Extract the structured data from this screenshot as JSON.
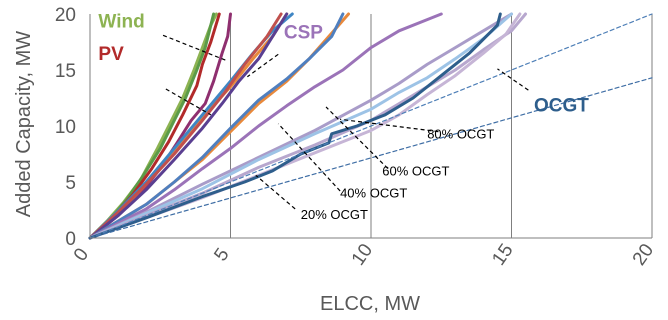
{
  "chart_data": {
    "type": "line",
    "xlabel": "ELCC, MW",
    "ylabel": "Added Capacity, MW",
    "xlim": [
      0,
      20
    ],
    "ylim": [
      0,
      20
    ],
    "xticks": [
      "0",
      "5",
      "10",
      "15",
      "20"
    ],
    "yticks": [
      "0",
      "5",
      "10",
      "15",
      "20"
    ],
    "grid": "vertical",
    "series": [
      {
        "name": "Wind",
        "color": "#8db352",
        "points": [
          [
            0,
            0
          ],
          [
            0.6,
            1.5
          ],
          [
            1.2,
            3.2
          ],
          [
            1.8,
            5.2
          ],
          [
            2.4,
            8
          ],
          [
            2.8,
            10
          ],
          [
            3.3,
            12.5
          ],
          [
            3.7,
            15
          ],
          [
            4,
            17
          ],
          [
            4.3,
            19
          ],
          [
            4.5,
            20
          ]
        ]
      },
      {
        "name": "",
        "color": "#5b9b48",
        "points": [
          [
            0,
            0
          ],
          [
            0.7,
            1.6
          ],
          [
            1.3,
            3.4
          ],
          [
            1.9,
            5.6
          ],
          [
            2.5,
            8
          ],
          [
            2.9,
            10
          ],
          [
            3.4,
            12.5
          ],
          [
            3.8,
            15
          ],
          [
            4.1,
            17
          ],
          [
            4.4,
            20
          ]
        ]
      },
      {
        "name": "PV",
        "color": "#b22a2a",
        "points": [
          [
            0,
            0
          ],
          [
            0.8,
            1.8
          ],
          [
            1.5,
            3.8
          ],
          [
            2.2,
            6.2
          ],
          [
            2.8,
            8.6
          ],
          [
            3.3,
            11
          ],
          [
            3.8,
            13.6
          ],
          [
            4,
            15.5
          ],
          [
            4.3,
            17.5
          ],
          [
            4.6,
            20
          ]
        ]
      },
      {
        "name": "",
        "color": "#8f2f6f",
        "points": [
          [
            0,
            0
          ],
          [
            1,
            2
          ],
          [
            1.8,
            4
          ],
          [
            2.5,
            6.2
          ],
          [
            3.1,
            8.5
          ],
          [
            3.6,
            10.5
          ],
          [
            4.1,
            12
          ],
          [
            4.4,
            14
          ],
          [
            4.7,
            16.5
          ],
          [
            4.9,
            18
          ],
          [
            5,
            20
          ]
        ]
      },
      {
        "name": "",
        "color": "#e8893c",
        "points": [
          [
            0,
            0
          ],
          [
            1,
            2.2
          ],
          [
            2,
            4.8
          ],
          [
            3,
            7.8
          ],
          [
            4,
            10.8
          ],
          [
            5,
            13.5
          ],
          [
            5.8,
            16
          ],
          [
            6.5,
            18
          ],
          [
            7,
            20
          ]
        ]
      },
      {
        "name": "",
        "color": "#3f86c4",
        "points": [
          [
            0,
            0
          ],
          [
            1,
            2.4
          ],
          [
            2,
            5
          ],
          [
            3,
            8
          ],
          [
            4,
            11
          ],
          [
            5,
            14
          ],
          [
            5.8,
            16.5
          ],
          [
            6.5,
            18.5
          ],
          [
            7.2,
            20
          ]
        ]
      },
      {
        "name": "",
        "color": "#c0504d",
        "points": [
          [
            0,
            0
          ],
          [
            1,
            2.3
          ],
          [
            2,
            4.8
          ],
          [
            3,
            7.5
          ],
          [
            4,
            10.5
          ],
          [
            4.8,
            13
          ],
          [
            5.5,
            15.5
          ],
          [
            6.3,
            18
          ],
          [
            6.8,
            20
          ]
        ]
      },
      {
        "name": "",
        "color": "#5a3f91",
        "points": [
          [
            0,
            0
          ],
          [
            1,
            2
          ],
          [
            2,
            4.3
          ],
          [
            3,
            7
          ],
          [
            4,
            9.8
          ],
          [
            4.7,
            12
          ],
          [
            5.3,
            14
          ],
          [
            6,
            16
          ],
          [
            6.5,
            18
          ],
          [
            7,
            20
          ]
        ]
      },
      {
        "name": "",
        "color": "#e8893c",
        "points": [
          [
            0,
            0
          ],
          [
            1,
            1.5
          ],
          [
            2,
            3
          ],
          [
            3,
            5
          ],
          [
            4,
            7
          ],
          [
            5,
            9.5
          ],
          [
            6,
            12
          ],
          [
            7,
            14
          ],
          [
            7.8,
            16
          ],
          [
            8.5,
            18
          ],
          [
            9.2,
            20
          ]
        ]
      },
      {
        "name": "",
        "color": "#4f7fbf",
        "points": [
          [
            0,
            0
          ],
          [
            1,
            1.5
          ],
          [
            2,
            3
          ],
          [
            3,
            5
          ],
          [
            4,
            7.2
          ],
          [
            5,
            9.8
          ],
          [
            6,
            12.3
          ],
          [
            7,
            14.2
          ],
          [
            7.8,
            16
          ],
          [
            8.6,
            18
          ],
          [
            9,
            20
          ]
        ]
      },
      {
        "name": "CSP",
        "color": "#9b73b8",
        "points": [
          [
            0,
            0
          ],
          [
            1,
            1.3
          ],
          [
            2,
            2.6
          ],
          [
            3,
            4.3
          ],
          [
            4,
            6.2
          ],
          [
            5,
            8
          ],
          [
            6,
            10
          ],
          [
            7,
            11.8
          ],
          [
            8,
            13.5
          ],
          [
            9,
            15
          ],
          [
            10,
            17
          ],
          [
            11,
            18.5
          ],
          [
            12,
            19.5
          ],
          [
            12.5,
            20
          ]
        ]
      },
      {
        "name": "",
        "color": "#a99cc9",
        "points": [
          [
            0,
            0
          ],
          [
            2,
            2.3
          ],
          [
            4,
            4.8
          ],
          [
            6,
            7.2
          ],
          [
            8,
            9.6
          ],
          [
            10,
            12.3
          ],
          [
            11,
            13.8
          ],
          [
            12,
            15.5
          ],
          [
            13,
            17
          ],
          [
            14,
            18.5
          ],
          [
            15,
            20
          ]
        ]
      },
      {
        "name": "",
        "color": "#9dc3e6",
        "points": [
          [
            0,
            0
          ],
          [
            2,
            2.2
          ],
          [
            4,
            4.4
          ],
          [
            6,
            7
          ],
          [
            8,
            9.3
          ],
          [
            10,
            11.5
          ],
          [
            11,
            13
          ],
          [
            12,
            14.3
          ],
          [
            13,
            16
          ],
          [
            14,
            17.8
          ],
          [
            15,
            20
          ]
        ]
      },
      {
        "name": "",
        "color": "#b7a7ce",
        "points": [
          [
            0,
            0
          ],
          [
            2,
            2
          ],
          [
            4,
            4
          ],
          [
            6,
            6.3
          ],
          [
            8,
            8.3
          ],
          [
            10,
            10.5
          ],
          [
            11,
            12
          ],
          [
            12,
            13.5
          ],
          [
            13,
            15
          ],
          [
            14,
            16.8
          ],
          [
            15,
            18.5
          ],
          [
            15.5,
            20
          ]
        ]
      },
      {
        "name": "",
        "color": "#c6b5d6",
        "points": [
          [
            0,
            0
          ],
          [
            2,
            1.8
          ],
          [
            4,
            3.6
          ],
          [
            6,
            5.6
          ],
          [
            8,
            7.6
          ],
          [
            10,
            9.6
          ],
          [
            11,
            11
          ],
          [
            12,
            12.8
          ],
          [
            13,
            14.5
          ],
          [
            14,
            16.5
          ],
          [
            14.8,
            18.2
          ],
          [
            15.3,
            20
          ]
        ]
      },
      {
        "name": "OCGT",
        "color": "#2e5e8c",
        "points": [
          [
            0,
            0
          ],
          [
            2,
            1.8
          ],
          [
            4,
            3.7
          ],
          [
            5.5,
            5
          ],
          [
            6.5,
            6
          ],
          [
            7.5,
            7.5
          ],
          [
            8.5,
            8.5
          ],
          [
            8.6,
            9.3
          ],
          [
            9.5,
            10
          ],
          [
            10.5,
            11
          ],
          [
            11.5,
            12.5
          ],
          [
            12.5,
            14.5
          ],
          [
            13.5,
            16.5
          ],
          [
            14.5,
            19
          ],
          [
            14.6,
            20
          ]
        ]
      },
      {
        "name": "",
        "color": "#4e7fb7",
        "dashed": true,
        "points": [
          [
            0,
            0
          ],
          [
            20,
            20
          ]
        ]
      },
      {
        "name": "",
        "color": "#3f6ea5",
        "dashed": true,
        "points": [
          [
            0,
            0
          ],
          [
            20,
            14.3
          ]
        ]
      }
    ],
    "annotations": [
      {
        "text": "Wind",
        "color": "#8db352",
        "bold": true,
        "size": "large",
        "at": [
          0.3,
          18.8
        ],
        "pointer": [
          [
            2.6,
            18.1
          ],
          [
            4.9,
            15.8
          ]
        ]
      },
      {
        "text": "PV",
        "color": "#b22a2a",
        "bold": true,
        "size": "large",
        "at": [
          0.3,
          15.9
        ],
        "pointer": [
          [
            2.7,
            13.3
          ],
          [
            4.3,
            11
          ]
        ]
      },
      {
        "text": "CSP",
        "color": "#9b73b8",
        "bold": true,
        "size": "large",
        "at": [
          6.9,
          17.8
        ],
        "pointer": [
          [
            6.7,
            16.4
          ],
          [
            5.6,
            14.4
          ]
        ]
      },
      {
        "text": "OCGT",
        "color": "#2e5e8c",
        "bold": true,
        "size": "large",
        "at": [
          15.8,
          11.3
        ],
        "pointer": [
          [
            15.6,
            13.2
          ],
          [
            14.5,
            15.1
          ]
        ]
      },
      {
        "text": "80% OCGT",
        "color": "#000000",
        "bold": false,
        "size": "small",
        "at": [
          12.0,
          8.9
        ],
        "pointer": [
          [
            12.4,
            9.5
          ],
          [
            8.9,
            10.6
          ]
        ]
      },
      {
        "text": "60% OCGT",
        "color": "#000000",
        "bold": false,
        "size": "small",
        "at": [
          10.4,
          5.6
        ],
        "pointer": [
          [
            10.6,
            6.2
          ],
          [
            8.4,
            11.7
          ]
        ]
      },
      {
        "text": "40% OCGT",
        "color": "#000000",
        "bold": false,
        "size": "small",
        "at": [
          8.9,
          3.6
        ],
        "pointer": [
          [
            8.9,
            4.2
          ],
          [
            6.7,
            10.2
          ]
        ]
      },
      {
        "text": "20% OCGT",
        "color": "#000000",
        "bold": false,
        "size": "small",
        "at": [
          7.5,
          1.7
        ],
        "pointer": [
          [
            7.3,
            2.6
          ],
          [
            5.9,
            5.6
          ]
        ]
      }
    ]
  }
}
